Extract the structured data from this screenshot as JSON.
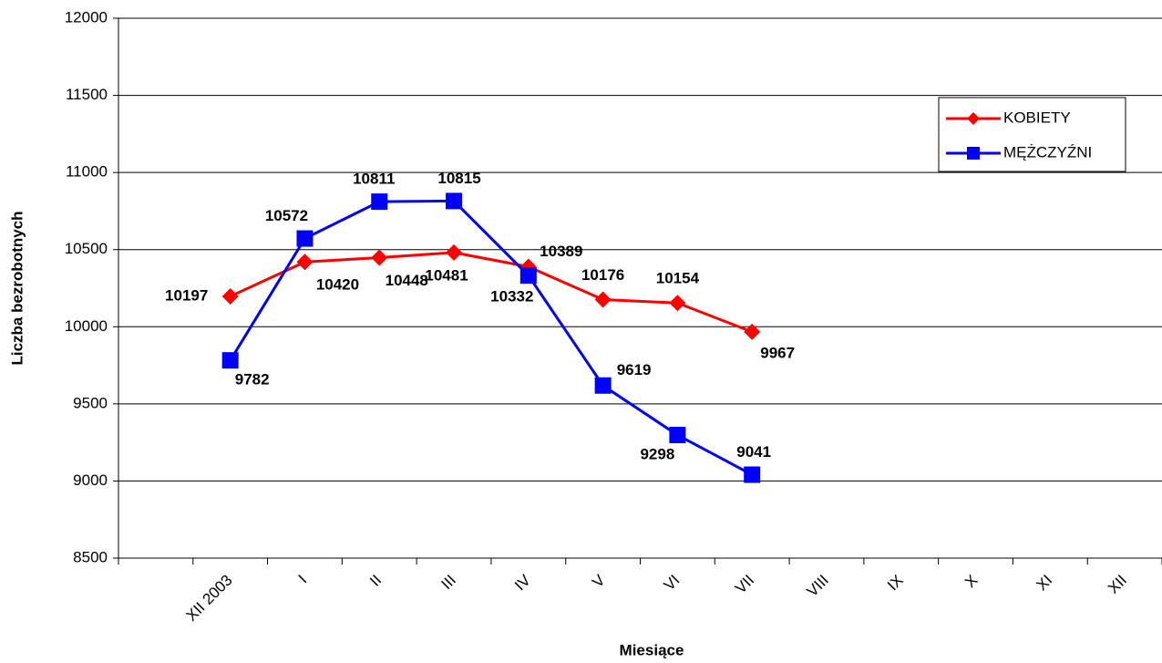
{
  "chart_data": {
    "type": "line",
    "x_label": "Miesiące",
    "y_label": "Liczba bezrobotnych",
    "categories": [
      null,
      "XII 2003",
      "I",
      "II",
      "III",
      "IV",
      "V",
      "VI",
      "VII",
      "VIII",
      "IX",
      "X",
      "XI",
      "XII"
    ],
    "series": [
      {
        "name": "KOBIETY",
        "color": "#ff0000",
        "marker": "diamond",
        "values": [
          null,
          10197,
          10420,
          10448,
          10481,
          10389,
          10176,
          10154,
          9967,
          null,
          null,
          null,
          null,
          null
        ]
      },
      {
        "name": "MĘŻCZYŹNI",
        "color": "#0000ff",
        "marker": "square",
        "values": [
          null,
          9782,
          10572,
          10811,
          10815,
          10332,
          9619,
          9298,
          9041,
          null,
          null,
          null,
          null,
          null
        ]
      }
    ],
    "ylim": [
      8500,
      12000
    ],
    "yticks": [
      8500,
      9000,
      9500,
      10000,
      10500,
      11000,
      11500,
      12000
    ],
    "grid": true,
    "legend": "upper right"
  }
}
